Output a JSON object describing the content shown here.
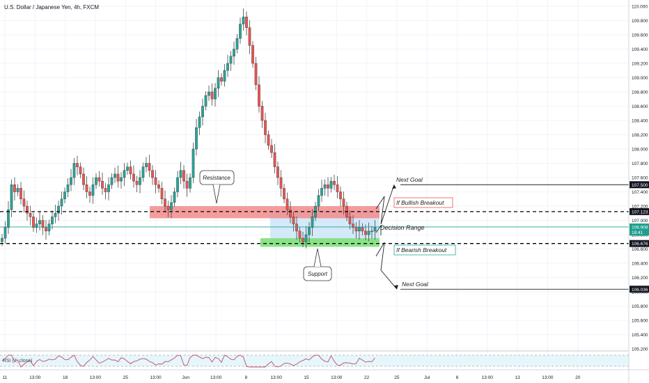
{
  "title": "U.S. Dollar / Japanese Yen, 4h, FXCM",
  "indicator_label": "RSI (7, close)",
  "colors": {
    "up": "#26a69a",
    "down": "#ef5350",
    "resistance": "#f28b8b",
    "support": "#7ee07a",
    "decision": "#c9e3f7",
    "last_price": "#1e9f8f",
    "rsi_line": "#c04a6e",
    "rsi_band": "#e6f6fb"
  },
  "chart_data": {
    "type": "candlestick",
    "symbol": "USDJPY",
    "timeframe": "4h",
    "y_range": [
      105.1,
      110.05
    ],
    "y_ticks": [
      "110.000",
      "109.800",
      "109.600",
      "109.400",
      "109.200",
      "109.000",
      "108.800",
      "108.600",
      "108.400",
      "108.200",
      "108.000",
      "107.800",
      "107.600",
      "107.400",
      "107.200",
      "107.000",
      "106.800",
      "106.600",
      "106.400",
      "106.200",
      "106.000",
      "105.800",
      "105.600",
      "105.400",
      "105.200"
    ],
    "x_ticks": [
      "11",
      "13:00",
      "18",
      "13:00",
      "25",
      "13:00",
      "Jun",
      "13:00",
      "8",
      "13:00",
      "15",
      "13:00",
      "22",
      "25",
      "Jul",
      "6",
      "13:00",
      "13",
      "13:00",
      "20"
    ],
    "price_flags": [
      {
        "label": "107.500",
        "price": 107.5,
        "kind": "dark"
      },
      {
        "label": "107.123",
        "price": 107.123,
        "kind": "dark"
      },
      {
        "label": "106.908",
        "price": 106.908,
        "kind": "last"
      },
      {
        "label": "18:41",
        "price": 106.835,
        "kind": "last"
      },
      {
        "label": "106.676",
        "price": 106.676,
        "kind": "dark"
      },
      {
        "label": "106.036",
        "price": 106.036,
        "kind": "dark"
      }
    ],
    "closes": [
      106.75,
      106.9,
      107.15,
      107.5,
      107.4,
      107.45,
      107.3,
      107.2,
      107.1,
      107.05,
      106.9,
      106.95,
      107.0,
      106.9,
      106.85,
      106.95,
      107.05,
      107.1,
      107.2,
      107.3,
      107.4,
      107.5,
      107.6,
      107.8,
      107.75,
      107.65,
      107.5,
      107.4,
      107.35,
      107.5,
      107.6,
      107.55,
      107.45,
      107.4,
      107.5,
      107.6,
      107.65,
      107.55,
      107.6,
      107.7,
      107.75,
      107.65,
      107.55,
      107.5,
      107.6,
      107.75,
      107.8,
      107.7,
      107.6,
      107.5,
      107.45,
      107.3,
      107.2,
      107.15,
      107.25,
      107.4,
      107.6,
      107.7,
      107.55,
      107.45,
      107.6,
      108.0,
      108.3,
      108.45,
      108.6,
      108.75,
      108.8,
      108.7,
      108.85,
      109.0,
      108.95,
      109.1,
      109.2,
      109.3,
      109.4,
      109.55,
      109.75,
      109.85,
      109.7,
      109.45,
      109.2,
      108.9,
      108.6,
      108.4,
      108.2,
      108.05,
      107.95,
      107.75,
      107.6,
      107.45,
      107.3,
      107.15,
      107.05,
      106.95,
      106.85,
      106.75,
      106.7,
      106.8,
      106.9,
      107.05,
      107.2,
      107.35,
      107.45,
      107.5,
      107.45,
      107.55,
      107.5,
      107.4,
      107.3,
      107.2,
      107.05,
      106.95,
      106.9,
      106.85,
      106.9,
      106.85,
      106.8,
      106.85,
      106.85,
      106.9
    ],
    "zones": [
      {
        "name": "resistance",
        "from": 107.03,
        "to": 107.2
      },
      {
        "name": "decision",
        "from": 106.7,
        "to": 107.13
      },
      {
        "name": "support",
        "from": 106.63,
        "to": 106.75
      }
    ],
    "levels": [
      107.123,
      106.676
    ],
    "horizontal_lines": [
      107.5,
      106.036
    ],
    "rsi": {
      "period": 7,
      "source": "close"
    },
    "annotations": {
      "resistance": "Resistance",
      "support": "Support",
      "decision_range": "Decision Range",
      "bullish": "If Bullish Breakout",
      "bearish": "If Bearish Breakout",
      "next_goal_up": "Next Goal",
      "next_goal_down": "Next Goal"
    }
  }
}
